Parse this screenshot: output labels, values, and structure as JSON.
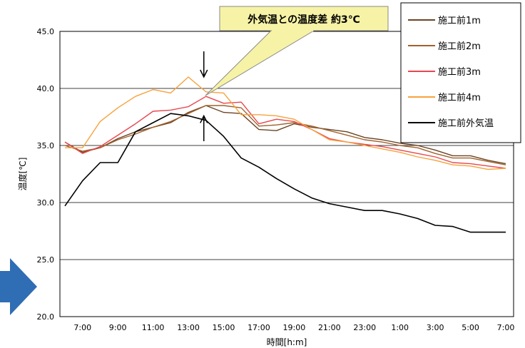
{
  "chart_data": {
    "type": "line",
    "xlabel": "時間[h:m]",
    "ylabel": "温度[℃]",
    "ylim": [
      20,
      45
    ],
    "yticks": [
      "20.0",
      "25.0",
      "30.0",
      "35.0",
      "40.0",
      "45.0"
    ],
    "x": [
      "6:00",
      "7:00",
      "8:00",
      "9:00",
      "10:00",
      "11:00",
      "12:00",
      "13:00",
      "14:00",
      "15:00",
      "16:00",
      "17:00",
      "18:00",
      "19:00",
      "20:00",
      "21:00",
      "22:00",
      "23:00",
      "0:00",
      "1:00",
      "2:00",
      "3:00",
      "4:00",
      "5:00",
      "6:00",
      "7:00"
    ],
    "x_tick_labels": [
      "7:00",
      "9:00",
      "11:00",
      "13:00",
      "15:00",
      "17:00",
      "19:00",
      "21:00",
      "23:00",
      "1:00",
      "3:00",
      "5:00",
      "7:00"
    ],
    "grid": "horizontal",
    "legend_position": "top-right",
    "series": [
      {
        "name": "施工前1m",
        "color": "#6b4423",
        "values": [
          35.3,
          34.4,
          34.8,
          35.6,
          36.2,
          36.6,
          37.0,
          37.9,
          38.5,
          37.9,
          37.8,
          36.4,
          36.3,
          36.9,
          36.6,
          36.4,
          36.2,
          35.7,
          35.5,
          35.2,
          35.0,
          34.6,
          34.1,
          34.1,
          33.7,
          33.4
        ]
      },
      {
        "name": "施工前2m",
        "color": "#a0612b",
        "values": [
          35.0,
          34.5,
          34.8,
          35.5,
          36.0,
          36.6,
          37.1,
          37.8,
          38.5,
          38.5,
          38.3,
          36.7,
          36.8,
          37.0,
          36.7,
          36.3,
          35.9,
          35.5,
          35.3,
          35.0,
          34.8,
          34.3,
          33.9,
          33.9,
          33.6,
          33.3
        ]
      },
      {
        "name": "施工前3m",
        "color": "#e8474f",
        "values": [
          35.3,
          34.3,
          34.9,
          35.9,
          36.9,
          38.0,
          38.1,
          38.4,
          39.3,
          38.7,
          38.8,
          36.9,
          37.3,
          37.1,
          36.4,
          35.6,
          35.3,
          35.1,
          34.9,
          34.6,
          34.3,
          34.0,
          33.5,
          33.4,
          33.2,
          33.0
        ]
      },
      {
        "name": "施工前4m",
        "color": "#f7a23c",
        "values": [
          34.8,
          34.8,
          37.1,
          38.3,
          39.3,
          39.9,
          39.6,
          41.0,
          39.7,
          39.6,
          37.7,
          37.7,
          37.6,
          37.3,
          36.4,
          35.5,
          35.3,
          35.0,
          34.7,
          34.4,
          34.0,
          33.7,
          33.3,
          33.2,
          32.9,
          33.0
        ]
      },
      {
        "name": "施工前外気温",
        "color": "#000000",
        "values": [
          29.7,
          31.9,
          33.5,
          33.5,
          36.2,
          37.0,
          37.8,
          37.6,
          37.2,
          35.8,
          33.9,
          33.1,
          32.1,
          31.2,
          30.4,
          29.9,
          29.6,
          29.3,
          29.3,
          29.0,
          28.6,
          28.0,
          27.9,
          27.4,
          27.4,
          27.4
        ]
      }
    ],
    "annotation": {
      "text": "外気温との温度差 約3℃",
      "arrow_x": "14:00",
      "y_top": 41.0,
      "y_bottom": 37.6
    }
  },
  "colors": {
    "callout_fill": "#f7f3a6",
    "arrow_decoration": "#2f6db4"
  },
  "icons": {
    "left_arrow": "blue-right-arrow-icon"
  }
}
